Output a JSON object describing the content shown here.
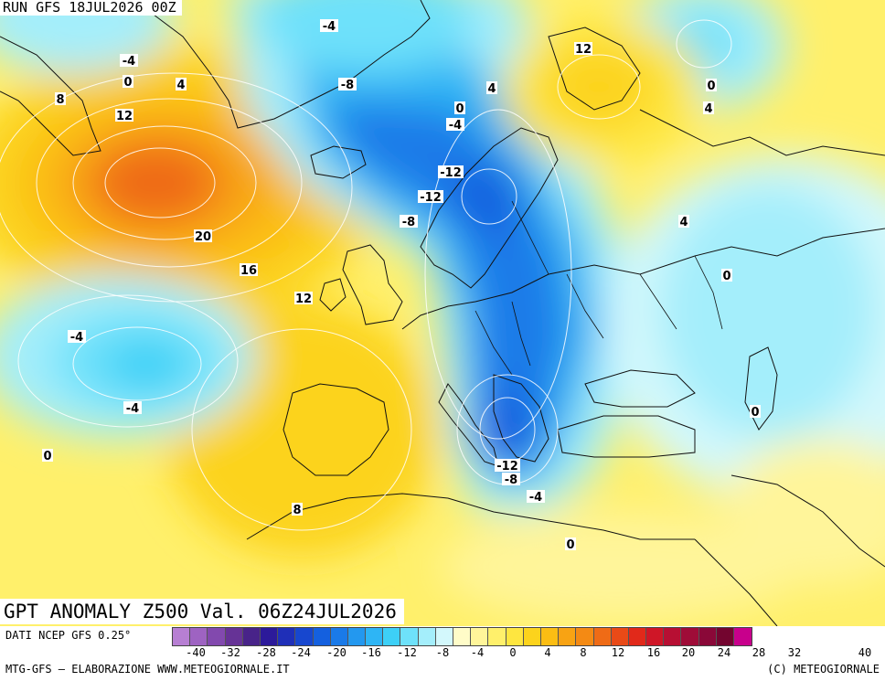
{
  "header": {
    "run_label": "RUN GFS 18JUL2026 00Z",
    "map_title": "GPT ANOMALY Z500 Val. 06Z24JUL2026"
  },
  "footer": {
    "source": "DATI NCEP GFS 0.25°",
    "elaboration": "MTG-GFS – ELABORAZIONE WWW.METEOGIORNALE.IT",
    "copyright": "(C) METEOGIORNALE"
  },
  "legend": {
    "colors": [
      "#b77fd3",
      "#9e63c2",
      "#8249ae",
      "#663396",
      "#482389",
      "#2c1a9a",
      "#1f2fb8",
      "#1747cf",
      "#1460df",
      "#1a7ae8",
      "#2398ef",
      "#2eb5f5",
      "#3dd0f7",
      "#6ee1fa",
      "#a4eefb",
      "#d3f8fc",
      "#fffcc8",
      "#fff59a",
      "#fff06b",
      "#fee640",
      "#fcd31c",
      "#fbbd13",
      "#f8a313",
      "#f48a14",
      "#ef6b16",
      "#e94a17",
      "#e1291a",
      "#cf1627",
      "#b70f33",
      "#9f0c38",
      "#8a0838",
      "#73052f",
      "#c8008c"
    ],
    "tick_labels": [
      "-40",
      "-32",
      "-28",
      "-24",
      "-20",
      "-16",
      "-12",
      "-8",
      "-4",
      "0",
      "4",
      "8",
      "12",
      "16",
      "20",
      "24",
      "28",
      "32",
      "40"
    ]
  },
  "map_labels": [
    {
      "text": "-4",
      "anchor": "north-atlantic-north"
    },
    {
      "text": "-4",
      "anchor": "labrador"
    },
    {
      "text": "0",
      "anchor": "labrador-south"
    },
    {
      "text": "4",
      "anchor": "labrador-east"
    },
    {
      "text": "8",
      "anchor": "newfoundland-west"
    },
    {
      "text": "12",
      "anchor": "newfoundland"
    },
    {
      "text": "20",
      "anchor": "atlantic-high-core"
    },
    {
      "text": "16",
      "anchor": "atlantic-high-east"
    },
    {
      "text": "12",
      "anchor": "ireland-west"
    },
    {
      "text": "-8",
      "anchor": "iceland-north"
    },
    {
      "text": "0",
      "anchor": "norwegian-sea-north"
    },
    {
      "text": "4",
      "anchor": "barents-west"
    },
    {
      "text": "-4",
      "anchor": "norway-north"
    },
    {
      "text": "-12",
      "anchor": "norway-central"
    },
    {
      "text": "-12",
      "anchor": "norway-south"
    },
    {
      "text": "-8",
      "anchor": "north-sea"
    },
    {
      "text": "12",
      "anchor": "barents-sea"
    },
    {
      "text": "0",
      "anchor": "urals-north"
    },
    {
      "text": "4",
      "anchor": "urals-north-south"
    },
    {
      "text": "4",
      "anchor": "russia-north"
    },
    {
      "text": "0",
      "anchor": "russia-central"
    },
    {
      "text": "0",
      "anchor": "caspian"
    },
    {
      "text": "-4",
      "anchor": "azores-north"
    },
    {
      "text": "-4",
      "anchor": "azores-south"
    },
    {
      "text": "0",
      "anchor": "madeira"
    },
    {
      "text": "8",
      "anchor": "morocco-north"
    },
    {
      "text": "-12",
      "anchor": "ionian-sea"
    },
    {
      "text": "-8",
      "anchor": "ionian-sea-south"
    },
    {
      "text": "-4",
      "anchor": "libya-coast"
    },
    {
      "text": "0",
      "anchor": "egypt-libya"
    }
  ]
}
